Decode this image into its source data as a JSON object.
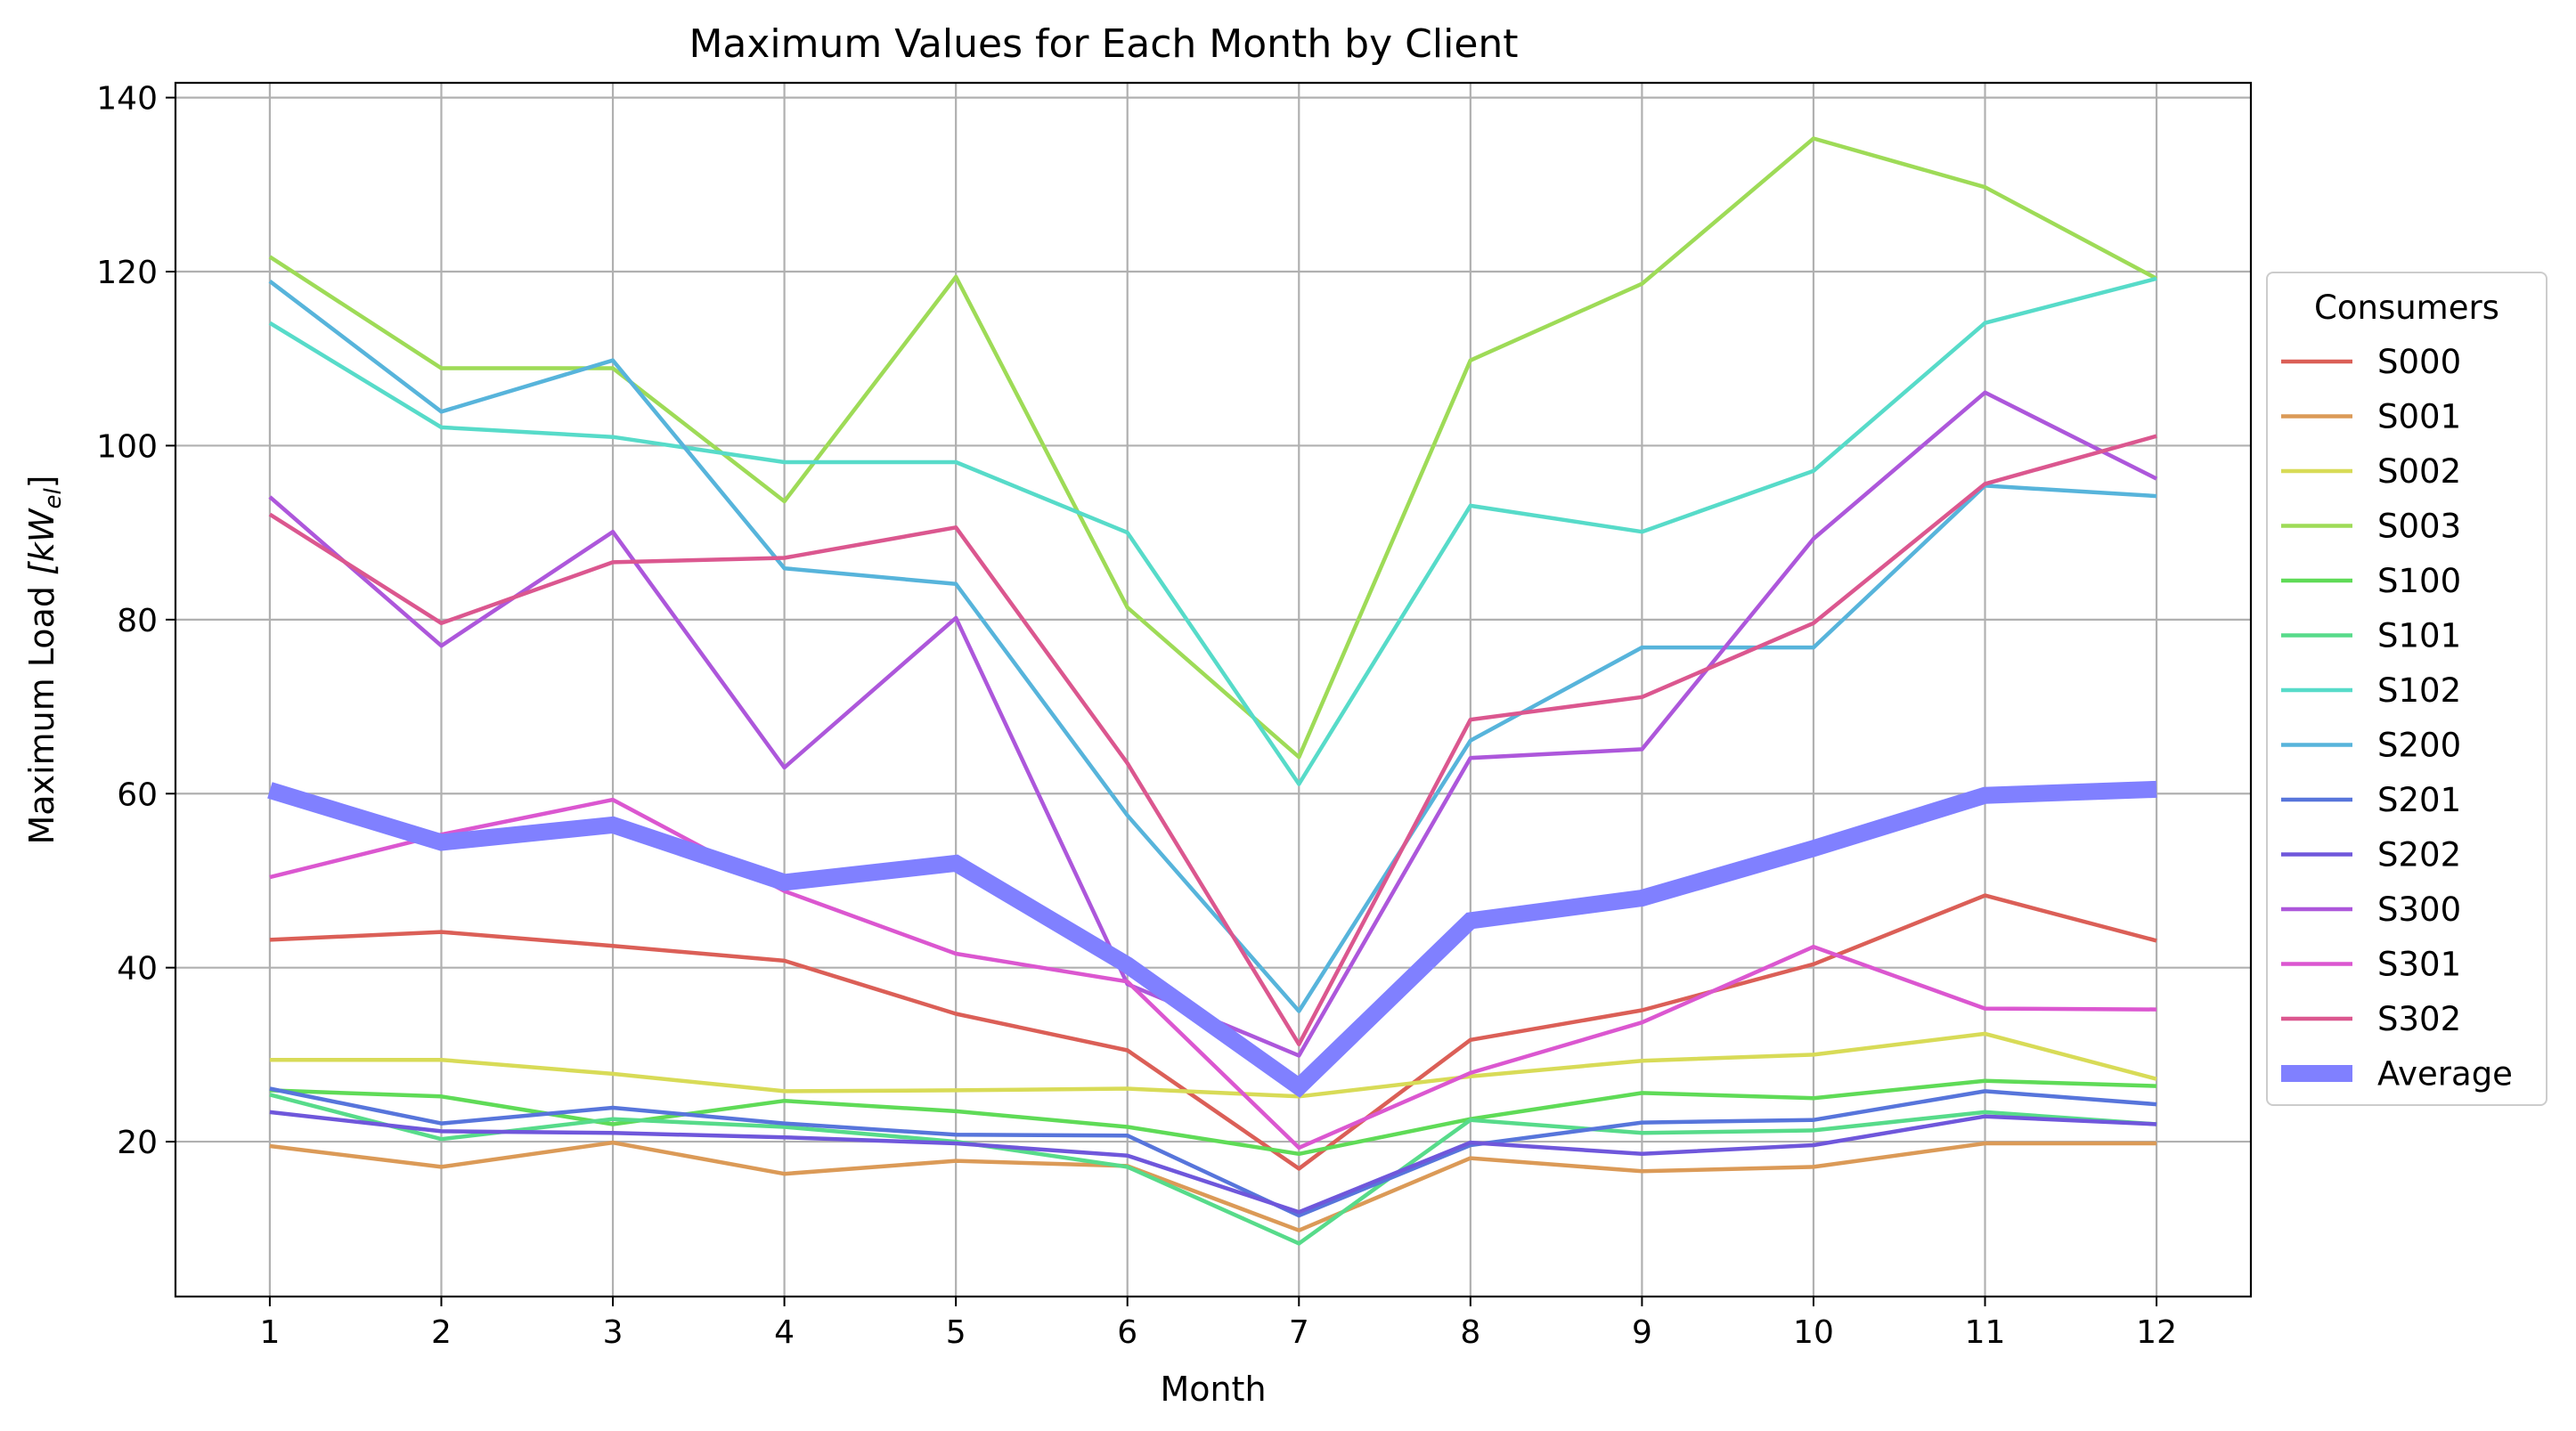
{
  "chart_data": {
    "type": "line",
    "title": "Maximum Values for Each Month by Client",
    "xlabel": "Month",
    "ylabel": "Maximum Load",
    "ylabel_unit": "[kW",
    "ylabel_unit_sub": "el",
    "ylabel_unit_close": "]",
    "x": [
      1,
      2,
      3,
      4,
      5,
      6,
      7,
      8,
      9,
      10,
      11,
      12
    ],
    "xticks": [
      "1",
      "2",
      "3",
      "4",
      "5",
      "6",
      "7",
      "8",
      "9",
      "10",
      "11",
      "12"
    ],
    "xlim": [
      0.45,
      12.55
    ],
    "ylim": [
      2.2,
      141.7
    ],
    "yticks": [
      20,
      40,
      60,
      80,
      100,
      120,
      140
    ],
    "yticklabels": [
      "20",
      "40",
      "60",
      "80",
      "100",
      "120",
      "140"
    ],
    "grid": true,
    "legend": {
      "title": "Consumers",
      "placement": "right-outside"
    },
    "series": [
      {
        "name": "S000",
        "color": "#db5f57",
        "values": [
          43.2,
          44.1,
          42.5,
          40.8,
          34.7,
          30.5,
          16.9,
          31.7,
          35.1,
          40.4,
          48.3,
          43.1
        ]
      },
      {
        "name": "S001",
        "color": "#db9a57",
        "values": [
          19.5,
          17.1,
          19.9,
          16.3,
          17.8,
          17.2,
          9.8,
          18.1,
          16.6,
          17.1,
          19.8,
          19.8
        ]
      },
      {
        "name": "S002",
        "color": "#d8db57",
        "values": [
          29.4,
          29.4,
          27.8,
          25.8,
          25.9,
          26.1,
          25.2,
          27.5,
          29.3,
          30.0,
          32.4,
          27.2
        ]
      },
      {
        "name": "S003",
        "color": "#9edb57",
        "values": [
          121.7,
          108.9,
          108.9,
          93.6,
          119.4,
          81.4,
          64.2,
          109.8,
          118.6,
          135.3,
          129.7,
          119.2
        ]
      },
      {
        "name": "S100",
        "color": "#5fdb57",
        "values": [
          25.9,
          25.2,
          22.0,
          24.7,
          23.5,
          21.7,
          18.6,
          22.6,
          25.6,
          25.0,
          27.0,
          26.4
        ]
      },
      {
        "name": "S101",
        "color": "#57db8a",
        "values": [
          25.4,
          20.3,
          22.6,
          21.7,
          20.0,
          17.1,
          8.3,
          22.5,
          21.0,
          21.3,
          23.4,
          22.0
        ]
      },
      {
        "name": "S102",
        "color": "#57dbc9",
        "values": [
          114.1,
          102.1,
          101.0,
          98.1,
          98.1,
          90.0,
          61.1,
          93.1,
          90.1,
          97.1,
          114.1,
          119.2
        ]
      },
      {
        "name": "S200",
        "color": "#57b4db",
        "values": [
          118.9,
          103.9,
          109.8,
          85.9,
          84.1,
          57.5,
          35.0,
          66.1,
          76.8,
          76.8,
          95.4,
          94.2
        ]
      },
      {
        "name": "S201",
        "color": "#5775db",
        "values": [
          26.1,
          22.1,
          23.9,
          22.1,
          20.8,
          20.7,
          11.5,
          19.6,
          22.2,
          22.5,
          25.8,
          24.3
        ]
      },
      {
        "name": "S202",
        "color": "#6f57db",
        "values": [
          23.4,
          21.2,
          21.0,
          20.5,
          19.8,
          18.4,
          11.9,
          19.9,
          18.6,
          19.6,
          22.9,
          22.0
        ]
      },
      {
        "name": "S300",
        "color": "#ad57db",
        "values": [
          94.1,
          77.0,
          90.1,
          63.0,
          80.2,
          38.1,
          29.9,
          64.1,
          65.1,
          89.3,
          106.1,
          96.2
        ]
      },
      {
        "name": "S301",
        "color": "#db57d0",
        "values": [
          50.4,
          55.3,
          59.3,
          48.8,
          41.6,
          38.4,
          19.3,
          27.9,
          33.7,
          42.4,
          35.3,
          35.2
        ]
      },
      {
        "name": "S302",
        "color": "#db578f",
        "values": [
          92.1,
          79.6,
          86.6,
          87.1,
          90.6,
          63.5,
          31.2,
          68.5,
          71.1,
          79.6,
          95.6,
          101.1
        ]
      }
    ],
    "average": {
      "name": "Average",
      "color": "#8080ff",
      "values": [
        60.4,
        54.4,
        56.4,
        49.8,
        52.0,
        40.3,
        26.3,
        45.4,
        48.0,
        53.7,
        59.8,
        60.5
      ]
    }
  }
}
